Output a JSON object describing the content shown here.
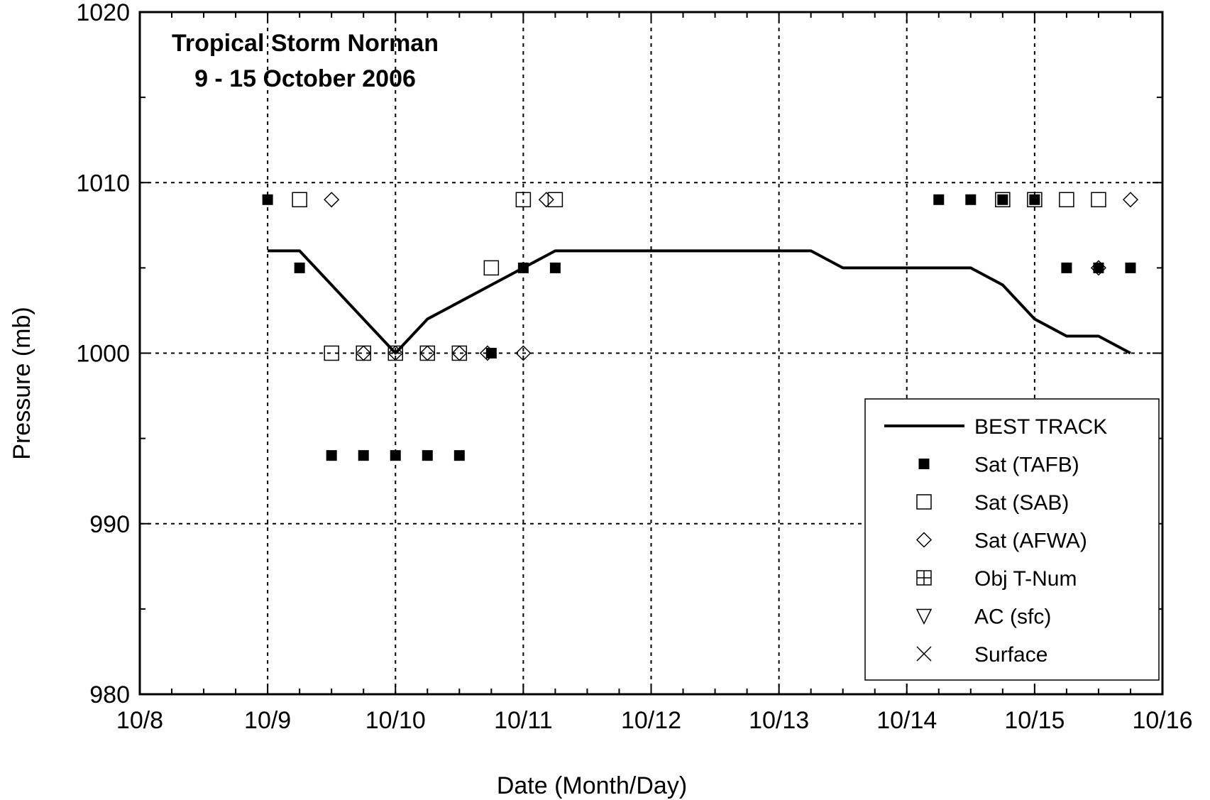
{
  "chart_data": {
    "type": "scatter",
    "title_lines": [
      "Tropical Storm Norman",
      "9 - 15 October 2006"
    ],
    "xlabel": "Date (Month/Day)",
    "ylabel": "Pressure (mb)",
    "x_unit": "day of October 2006",
    "xlim": [
      8,
      16
    ],
    "ylim": [
      980,
      1020
    ],
    "x_ticks": [
      8,
      9,
      10,
      11,
      12,
      13,
      14,
      15,
      16
    ],
    "x_tick_labels": [
      "10/8",
      "10/9",
      "10/10",
      "10/11",
      "10/12",
      "10/13",
      "10/14",
      "10/15",
      "10/16"
    ],
    "y_ticks": [
      980,
      990,
      1000,
      1010,
      1020
    ],
    "y_tick_labels": [
      "980",
      "990",
      "1000",
      "1010",
      "1020"
    ],
    "grid": true,
    "legend_position": "bottom-right",
    "series": [
      {
        "name": "BEST TRACK",
        "kind": "line",
        "color": "#000000",
        "x": [
          9.0,
          9.25,
          9.5,
          9.75,
          10.0,
          10.25,
          10.5,
          10.75,
          11.0,
          11.25,
          11.5,
          11.75,
          12.0,
          12.25,
          12.5,
          12.75,
          13.0,
          13.25,
          13.5,
          13.75,
          14.0,
          14.25,
          14.5,
          14.75,
          15.0,
          15.25,
          15.5,
          15.75
        ],
        "y": [
          1006,
          1006,
          1004,
          1002,
          1000,
          1002,
          1003,
          1004,
          1005,
          1006,
          1006,
          1006,
          1006,
          1006,
          1006,
          1006,
          1006,
          1006,
          1005,
          1005,
          1005,
          1005,
          1005,
          1004,
          1002,
          1001,
          1001,
          1000
        ]
      },
      {
        "name": "Sat (TAFB)",
        "kind": "marker",
        "marker": "filled-square",
        "x": [
          9.0,
          9.25,
          9.5,
          9.75,
          10.0,
          10.25,
          10.5,
          10.75,
          11.0,
          11.25,
          14.25,
          14.5,
          14.75,
          15.0,
          15.25,
          15.5,
          15.75
        ],
        "y": [
          1009,
          1005,
          994,
          994,
          994,
          994,
          994,
          1000,
          1005,
          1005,
          1009,
          1009,
          1009,
          1009,
          1005,
          1005,
          1005
        ]
      },
      {
        "name": "Sat (SAB)",
        "kind": "marker",
        "marker": "open-square",
        "x": [
          9.25,
          9.5,
          9.75,
          10.0,
          10.25,
          10.5,
          10.75,
          11.0,
          11.25,
          14.75,
          15.0,
          15.25,
          15.5
        ],
        "y": [
          1009,
          1000,
          1000,
          1000,
          1000,
          1000,
          1005,
          1009,
          1009,
          1009,
          1009,
          1009,
          1009
        ]
      },
      {
        "name": "Sat (AFWA)",
        "kind": "marker",
        "marker": "open-diamond",
        "x": [
          9.5,
          9.75,
          10.0,
          10.25,
          10.5,
          10.72,
          11.0,
          11.18,
          15.5,
          15.75
        ],
        "y": [
          1009,
          1000,
          1000,
          1000,
          1000,
          1000,
          1000,
          1009,
          1005,
          1009
        ]
      },
      {
        "name": "Obj T-Num",
        "kind": "marker",
        "marker": "open-square-cross",
        "x": [],
        "y": []
      },
      {
        "name": "AC (sfc)",
        "kind": "marker",
        "marker": "open-triangle-down",
        "x": [],
        "y": []
      },
      {
        "name": "Surface",
        "kind": "marker",
        "marker": "x-cross",
        "x": [],
        "y": []
      }
    ]
  }
}
